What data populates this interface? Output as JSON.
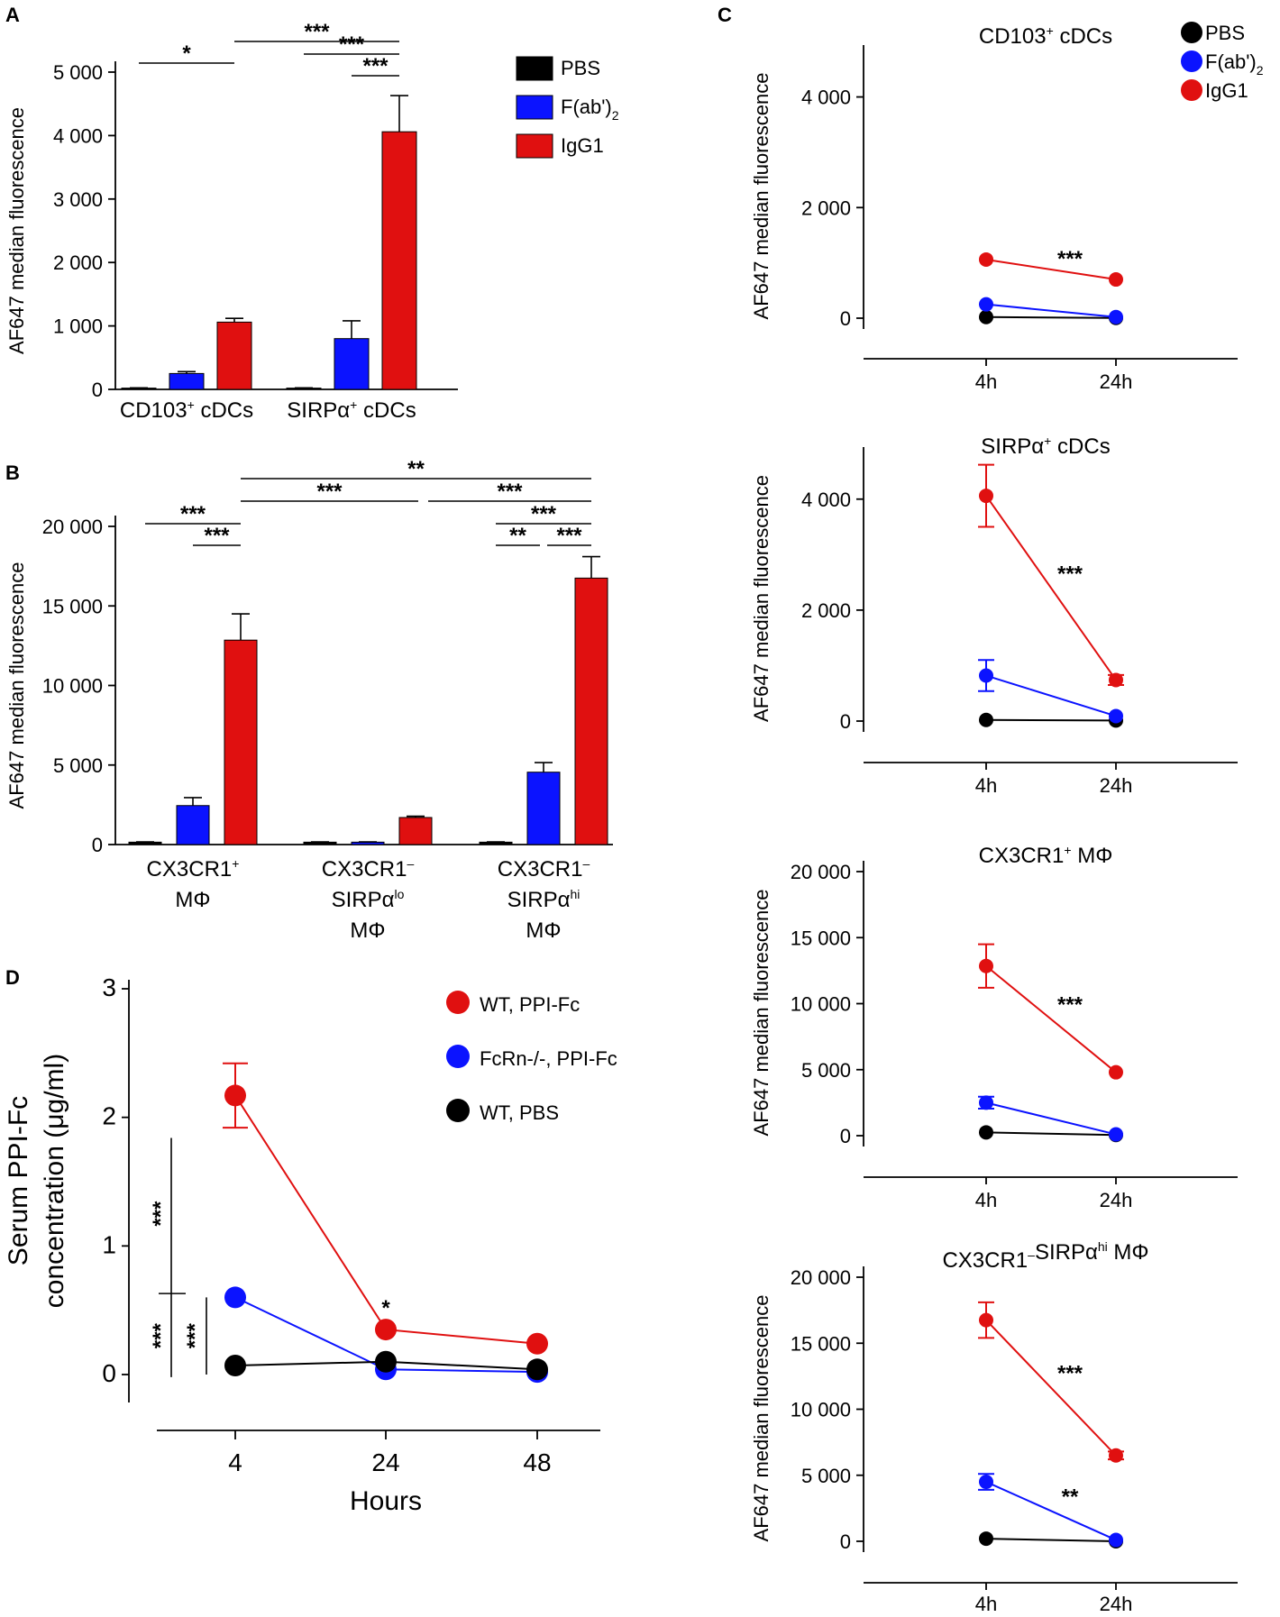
{
  "colors": {
    "PBS": "#000000",
    "F(ab')2": "#0b13ff",
    "IgG1": "#e01010",
    "WT, PPI-Fc": "#e01010",
    "FcRn-/-, PPI-Fc": "#0b13ff",
    "WT, PBS": "#000000"
  },
  "chart_data": [
    {
      "panel": "A",
      "type": "bar",
      "ylabel": "AF647 median fluorescence",
      "ylim": [
        0,
        5000
      ],
      "yticks": [
        "0",
        "1 000",
        "2 000",
        "3 000",
        "4 000",
        "5 000"
      ],
      "categories": [
        [
          "CD103",
          "+",
          " cDCs"
        ],
        [
          "SIRPα",
          "+",
          " cDCs"
        ]
      ],
      "series": [
        {
          "name": "PBS",
          "values": [
            20,
            20
          ],
          "errors": [
            5,
            5
          ]
        },
        {
          "name": "F(ab')2",
          "values": [
            250,
            800
          ],
          "errors": [
            30,
            280
          ]
        },
        {
          "name": "IgG1",
          "values": [
            1060,
            4060
          ],
          "errors": [
            60,
            570
          ]
        }
      ],
      "legend": [
        [
          "PBS",
          ""
        ],
        [
          "F(ab')",
          "2"
        ],
        [
          "IgG1",
          ""
        ]
      ],
      "significance": [
        {
          "from": [
            0,
            0
          ],
          "to": [
            0,
            2
          ],
          "label": "*"
        },
        {
          "from": [
            0,
            2
          ],
          "to": [
            1,
            2
          ],
          "label": "***"
        },
        {
          "from": [
            1,
            0
          ],
          "to": [
            1,
            2
          ],
          "label": "***"
        },
        {
          "from": [
            1,
            1
          ],
          "to": [
            1,
            2
          ],
          "label": "***"
        }
      ]
    },
    {
      "panel": "B",
      "type": "bar",
      "ylabel": "AF647 median fluorescence",
      "ylim": [
        0,
        20000
      ],
      "yticks": [
        "0",
        "5 000",
        "10 000",
        "15 000",
        "20 000"
      ],
      "categories": [
        [
          [
            "CX3CR1",
            "+",
            ""
          ],
          [
            "MΦ",
            "",
            ""
          ]
        ],
        [
          [
            "CX3CR1",
            "–",
            ""
          ],
          [
            "SIRPα",
            "lo",
            ""
          ],
          [
            "MΦ",
            "",
            ""
          ]
        ],
        [
          [
            "CX3CR1",
            "–",
            ""
          ],
          [
            "SIRPα",
            "hi",
            ""
          ],
          [
            "MΦ",
            "",
            ""
          ]
        ]
      ],
      "series": [
        {
          "name": "PBS",
          "values": [
            150,
            150,
            150
          ],
          "errors": [
            20,
            20,
            20
          ]
        },
        {
          "name": "F(ab')2",
          "values": [
            2450,
            150,
            4550
          ],
          "errors": [
            500,
            20,
            600
          ]
        },
        {
          "name": "IgG1",
          "values": [
            12850,
            1700,
            16750
          ],
          "errors": [
            1650,
            80,
            1350
          ]
        }
      ],
      "significance": [
        {
          "from": [
            0,
            0
          ],
          "to": [
            0,
            2
          ],
          "label": "***"
        },
        {
          "from": [
            0,
            1
          ],
          "to": [
            0,
            2
          ],
          "label": "***"
        },
        {
          "from": [
            0,
            2
          ],
          "to": [
            1,
            2
          ],
          "label": "***"
        },
        {
          "from": [
            0,
            2
          ],
          "to": [
            2,
            2
          ],
          "label": "**"
        },
        {
          "from": [
            1,
            2
          ],
          "to": [
            2,
            2
          ],
          "label": "***"
        },
        {
          "from": [
            2,
            0
          ],
          "to": [
            2,
            2
          ],
          "label": "***"
        },
        {
          "from": [
            2,
            0
          ],
          "to": [
            2,
            1
          ],
          "label": "**"
        },
        {
          "from": [
            2,
            1
          ],
          "to": [
            2,
            2
          ],
          "label": "***"
        }
      ]
    },
    {
      "panel": "C",
      "type": "line",
      "x": [
        "4h",
        "24h"
      ],
      "ylabel": "AF647 median fluorescence",
      "legend": [
        [
          "PBS",
          ""
        ],
        [
          "F(ab')",
          "2"
        ],
        [
          "IgG1",
          ""
        ]
      ],
      "subplots": [
        {
          "title": [
            [
              "CD103",
              "+",
              " cDCs"
            ]
          ],
          "ylim": [
            -300,
            5000
          ],
          "yticks": [
            "0",
            "2 000",
            "4 000"
          ],
          "series": [
            {
              "name": "PBS",
              "values": [
                20,
                5
              ],
              "errors": [
                0,
                0
              ]
            },
            {
              "name": "F(ab')2",
              "values": [
                250,
                20
              ],
              "errors": [
                0,
                0
              ]
            },
            {
              "name": "IgG1",
              "values": [
                1060,
                700
              ],
              "errors": [
                0,
                0
              ]
            }
          ],
          "annotations": [
            {
              "label": "***",
              "series": "IgG1"
            }
          ]
        },
        {
          "title": [
            [
              "SIRPα",
              "+",
              " cDCs"
            ]
          ],
          "ylim": [
            -300,
            5000
          ],
          "yticks": [
            "0",
            "2 000",
            "4 000"
          ],
          "series": [
            {
              "name": "PBS",
              "values": [
                20,
                10
              ],
              "errors": [
                0,
                0
              ]
            },
            {
              "name": "F(ab')2",
              "values": [
                820,
                90
              ],
              "errors": [
                280,
                0
              ]
            },
            {
              "name": "IgG1",
              "values": [
                4060,
                740
              ],
              "errors": [
                560,
                90
              ]
            }
          ],
          "annotations": [
            {
              "label": "***",
              "series": "IgG1"
            }
          ]
        },
        {
          "title": [
            [
              "CX3CR1",
              "+",
              " MΦ"
            ]
          ],
          "ylim": [
            -1500,
            20000
          ],
          "yticks": [
            "0",
            "5 000",
            "10 000",
            "15 000",
            "20 000"
          ],
          "series": [
            {
              "name": "PBS",
              "values": [
                250,
                50
              ],
              "errors": [
                0,
                0
              ]
            },
            {
              "name": "F(ab')2",
              "values": [
                2500,
                100
              ],
              "errors": [
                450,
                0
              ]
            },
            {
              "name": "IgG1",
              "values": [
                12850,
                4800
              ],
              "errors": [
                1650,
                0
              ]
            }
          ],
          "annotations": [
            {
              "label": "***",
              "series": "IgG1"
            }
          ]
        },
        {
          "title": [
            [
              "CX3CR1",
              "–",
              ""
            ],
            [
              "SIRPα",
              "hi",
              " MΦ"
            ]
          ],
          "ylim": [
            -1500,
            20000
          ],
          "yticks": [
            "0",
            "5 000",
            "10 000",
            "15 000",
            "20 000"
          ],
          "series": [
            {
              "name": "PBS",
              "values": [
                200,
                0
              ],
              "errors": [
                0,
                0
              ]
            },
            {
              "name": "F(ab')2",
              "values": [
                4500,
                100
              ],
              "errors": [
                600,
                0
              ]
            },
            {
              "name": "IgG1",
              "values": [
                16750,
                6500
              ],
              "errors": [
                1350,
                300
              ]
            }
          ],
          "annotations": [
            {
              "label": "***",
              "series": "IgG1"
            },
            {
              "label": "**",
              "series": "F(ab')2"
            }
          ]
        }
      ]
    },
    {
      "panel": "D",
      "type": "line",
      "x": [
        "4",
        "24",
        "48"
      ],
      "xlabel": "Hours",
      "ylabel": [
        "Serum PPI-Fc",
        "concentration (μg/ml)"
      ],
      "ylim": [
        -0.2,
        3
      ],
      "yticks": [
        "0",
        "1",
        "2",
        "3"
      ],
      "series": [
        {
          "name": "WT, PPI-Fc",
          "values": [
            2.17,
            0.35,
            0.24
          ],
          "errors": [
            0.25,
            0,
            0
          ]
        },
        {
          "name": "FcRn-/-, PPI-Fc",
          "values": [
            0.6,
            0.04,
            0.02
          ],
          "errors": [
            0,
            0,
            0
          ]
        },
        {
          "name": "WT, PBS",
          "values": [
            0.07,
            0.1,
            0.04
          ],
          "errors": [
            0,
            0,
            0
          ]
        }
      ],
      "legend": [
        "WT, PPI-Fc",
        "FcRn-/-, PPI-Fc",
        "WT, PBS"
      ],
      "annotations": [
        {
          "label": "*",
          "x": "24",
          "series": "WT, PPI-Fc"
        },
        {
          "label": "***",
          "between": [
            "WT, PPI-Fc",
            "FcRn-/-, PPI-Fc"
          ]
        },
        {
          "label": "***",
          "between": [
            "FcRn-/-, PPI-Fc",
            "WT, PBS"
          ]
        },
        {
          "label": "***",
          "between": [
            "WT, PPI-Fc",
            "WT, PBS"
          ]
        }
      ]
    }
  ],
  "panels": {
    "A": "A",
    "B": "B",
    "C": "C",
    "D": "D"
  }
}
